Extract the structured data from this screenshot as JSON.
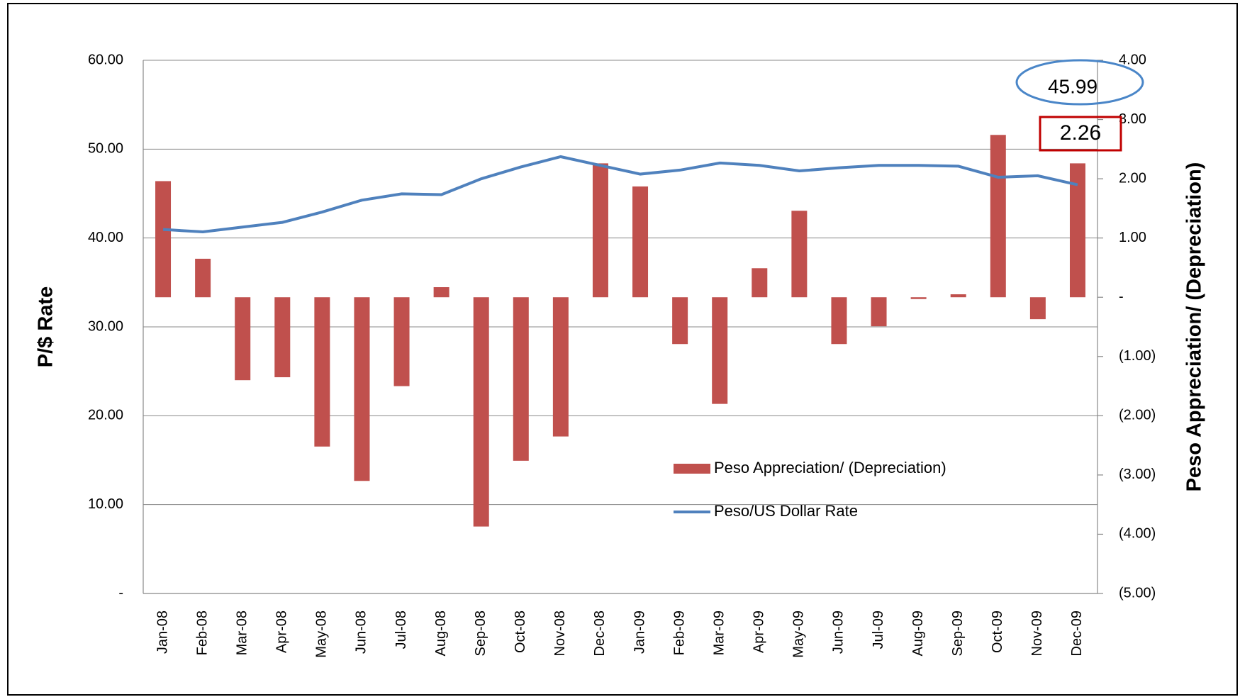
{
  "chart_data": {
    "type": "bar_line",
    "y_label": "P/$ Rate",
    "y2_label": "Peso Appreciation/ (Depreciation)",
    "categories": [
      "Jan-08",
      "Feb-08",
      "Mar-08",
      "Apr-08",
      "May-08",
      "Jun-08",
      "Jul-08",
      "Aug-08",
      "Sep-08",
      "Oct-08",
      "Nov-08",
      "Dec-08",
      "Jan-09",
      "Feb-09",
      "Mar-09",
      "Apr-09",
      "May-09",
      "Jun-09",
      "Jul-09",
      "Aug-09",
      "Sep-09",
      "Oct-09",
      "Nov-09",
      "Dec-09"
    ],
    "series": [
      {
        "name": "Peso Appreciation/ (Depreciation)",
        "type": "bar",
        "axis": "y2",
        "color": "#c0504d",
        "values": [
          1.96,
          0.65,
          -1.4,
          -1.35,
          -2.52,
          -3.1,
          -1.5,
          0.17,
          -3.87,
          -2.76,
          -2.35,
          2.26,
          1.87,
          -0.79,
          -1.8,
          0.49,
          1.46,
          -0.79,
          -0.49,
          -0.03,
          0.05,
          2.74,
          -0.37,
          2.26
        ]
      },
      {
        "name": "Peso/US Dollar Rate",
        "type": "line",
        "axis": "y",
        "color": "#4f81bd",
        "values": [
          40.96,
          40.69,
          41.23,
          41.76,
          42.92,
          44.26,
          44.97,
          44.88,
          46.66,
          48.0,
          49.15,
          48.17,
          47.19,
          47.64,
          48.44,
          48.17,
          47.55,
          47.9,
          48.17,
          48.17,
          48.08,
          46.84,
          47.0,
          45.99
        ]
      }
    ],
    "ylim": [
      0,
      60
    ],
    "yticks": [
      {
        "value": 0,
        "label": "-"
      },
      {
        "value": 10,
        "label": "10.00"
      },
      {
        "value": 20,
        "label": "20.00"
      },
      {
        "value": 30,
        "label": "30.00"
      },
      {
        "value": 40,
        "label": "40.00"
      },
      {
        "value": 50,
        "label": "50.00"
      },
      {
        "value": 60,
        "label": "60.00"
      }
    ],
    "y2lim": [
      -5,
      4
    ],
    "y2ticks": [
      {
        "value": -5,
        "label": "(5.00)"
      },
      {
        "value": -4,
        "label": "(4.00)"
      },
      {
        "value": -3,
        "label": "(3.00)"
      },
      {
        "value": -2,
        "label": "(2.00)"
      },
      {
        "value": -1,
        "label": "(1.00)"
      },
      {
        "value": 0,
        "label": "-"
      },
      {
        "value": 1,
        "label": "1.00"
      },
      {
        "value": 2,
        "label": "2.00"
      },
      {
        "value": 3,
        "label": "3.00"
      },
      {
        "value": 4,
        "label": "4.00"
      }
    ],
    "grid": true,
    "annotations": [
      "45.99",
      "2.26"
    ]
  }
}
